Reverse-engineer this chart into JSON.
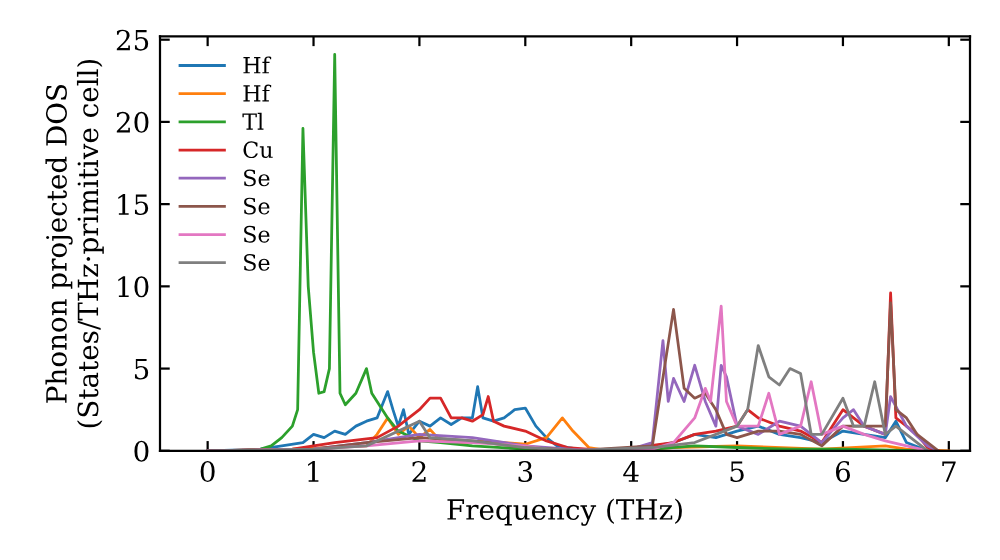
{
  "chart_data": {
    "type": "line",
    "xlabel": "Frequency (THz)",
    "ylabel": "Phonon projected DOS\n(States/THz·primitive cell)",
    "xlim": [
      -0.45,
      7.2
    ],
    "ylim": [
      0,
      25.2
    ],
    "xticks": [
      0,
      1,
      2,
      3,
      4,
      5,
      6,
      7
    ],
    "yticks": [
      0,
      5,
      10,
      15,
      20,
      25
    ],
    "grid": false,
    "legend": "top left",
    "line_style": "solid",
    "marker": "none",
    "series": [
      {
        "name": "Hf",
        "color": "#1f77b4",
        "x": [
          0,
          0.5,
          0.9,
          1.0,
          1.1,
          1.2,
          1.3,
          1.4,
          1.5,
          1.6,
          1.7,
          1.75,
          1.8,
          1.85,
          1.9,
          2.0,
          2.1,
          2.2,
          2.3,
          2.4,
          2.5,
          2.55,
          2.6,
          2.7,
          2.8,
          2.9,
          3.0,
          3.1,
          3.2,
          3.3,
          3.5,
          4.0,
          4.4,
          4.6,
          4.8,
          5.0,
          5.2,
          5.4,
          5.6,
          5.8,
          6.0,
          6.2,
          6.4,
          6.5,
          6.6,
          6.8
        ],
        "values": [
          0,
          0.1,
          0.5,
          1.0,
          0.8,
          1.2,
          1.0,
          1.5,
          1.8,
          2,
          3.6,
          2.5,
          1.5,
          2.5,
          1.0,
          1.8,
          1.5,
          2,
          1.6,
          2.0,
          2.0,
          3.9,
          2,
          1.8,
          2.0,
          2.5,
          2.6,
          1.5,
          0.8,
          0.3,
          0.1,
          0.05,
          0.5,
          1.0,
          0.8,
          1.2,
          1.5,
          1.0,
          0.8,
          0.5,
          1.2,
          1.0,
          0.8,
          1.8,
          0.5,
          0
        ]
      },
      {
        "name": "Hf",
        "color": "#ff7f0e",
        "x": [
          0,
          0.8,
          1.5,
          1.6,
          1.7,
          1.8,
          1.9,
          2.0,
          2.1,
          2.2,
          2.4,
          2.6,
          2.8,
          3.0,
          3.2,
          3.35,
          3.45,
          3.6,
          3.8,
          4.4,
          5.0,
          5.8,
          6.4,
          6.6,
          7.0
        ],
        "values": [
          0,
          0.1,
          0.3,
          1,
          2,
          1.0,
          1.5,
          0.8,
          1.3,
          0.6,
          0.5,
          0.6,
          0.5,
          0.4,
          0.8,
          2.0,
          1.2,
          0.2,
          0,
          0.2,
          0.3,
          0.1,
          0.3,
          0.1,
          0
        ]
      },
      {
        "name": "Tl",
        "color": "#2ca02c",
        "x": [
          0,
          0.3,
          0.5,
          0.6,
          0.7,
          0.8,
          0.85,
          0.9,
          0.95,
          1.0,
          1.05,
          1.1,
          1.15,
          1.2,
          1.25,
          1.3,
          1.4,
          1.5,
          1.55,
          1.6,
          1.7,
          1.8,
          2.0,
          2.2,
          2.5,
          3.0,
          3.5,
          4.2,
          4.6,
          5.0,
          5.5,
          6.0,
          6.8
        ],
        "values": [
          0,
          0,
          0.1,
          0.3,
          0.8,
          1.5,
          2.5,
          19.6,
          10,
          6,
          3.5,
          3.6,
          5,
          24.1,
          3.5,
          2.8,
          3.5,
          5,
          3.5,
          3,
          2,
          1.2,
          0.6,
          0.5,
          0.3,
          0.1,
          0.05,
          0.1,
          0.3,
          0.2,
          0.1,
          0.1,
          0
        ]
      },
      {
        "name": "Cu",
        "color": "#d62728",
        "x": [
          0,
          0.8,
          1.2,
          1.6,
          1.8,
          2.0,
          2.1,
          2.2,
          2.3,
          2.4,
          2.5,
          2.6,
          2.65,
          2.7,
          2.8,
          3.0,
          3.2,
          3.4,
          3.8,
          4.4,
          4.6,
          4.8,
          5.0,
          5.1,
          5.2,
          5.4,
          5.6,
          5.8,
          6.0,
          6.1,
          6.2,
          6.4,
          6.45,
          6.5,
          6.6,
          6.7,
          6.8,
          6.9
        ],
        "values": [
          0,
          0.1,
          0.5,
          0.8,
          1.5,
          2.5,
          3.2,
          3.2,
          2.0,
          2.0,
          1.8,
          2.2,
          3.3,
          1.8,
          1.5,
          1.2,
          0.6,
          0.2,
          0,
          0.5,
          1.0,
          1.2,
          1.5,
          2.5,
          2.0,
          1.5,
          1.2,
          0.5,
          2.5,
          2.0,
          1.5,
          1.0,
          9.6,
          2.0,
          1.5,
          1.0,
          0.2,
          0
        ]
      },
      {
        "name": "Se",
        "color": "#9467bd",
        "x": [
          0,
          1.0,
          1.5,
          2.0,
          2.5,
          3.0,
          3.5,
          4.0,
          4.2,
          4.3,
          4.35,
          4.4,
          4.5,
          4.6,
          4.7,
          4.8,
          4.85,
          4.9,
          5.0,
          5.2,
          5.4,
          5.6,
          5.8,
          6.0,
          6.1,
          6.2,
          6.4,
          6.45,
          6.6,
          6.8,
          6.9
        ],
        "values": [
          0,
          0.1,
          0.5,
          1.0,
          0.8,
          0.3,
          0.05,
          0.1,
          0.5,
          6.7,
          3,
          4.4,
          3.0,
          5.2,
          3,
          1.5,
          5.2,
          4.5,
          1.5,
          1.0,
          1.8,
          1.5,
          0.5,
          2.0,
          2.5,
          1.5,
          1.0,
          3.3,
          1.5,
          0.3,
          0
        ]
      },
      {
        "name": "Se",
        "color": "#8c564b",
        "x": [
          0,
          1.0,
          1.5,
          2.0,
          2.5,
          3.0,
          3.5,
          4.2,
          4.4,
          4.5,
          4.6,
          4.7,
          4.8,
          4.9,
          5.0,
          5.2,
          5.4,
          5.6,
          5.8,
          6.0,
          6.2,
          6.4,
          6.45,
          6.5,
          6.6,
          6.7,
          6.9
        ],
        "values": [
          0,
          0.1,
          0.5,
          0.8,
          0.6,
          0.2,
          0.02,
          0.3,
          8.6,
          3.8,
          3.2,
          3.5,
          2.5,
          1.0,
          0.8,
          1.2,
          1.2,
          1.0,
          0.3,
          1.5,
          1.5,
          1.5,
          9.0,
          2.5,
          2.0,
          1.0,
          0
        ]
      },
      {
        "name": "Se",
        "color": "#e377c2",
        "x": [
          0,
          1.0,
          1.5,
          2.0,
          2.5,
          3.0,
          3.2,
          3.4,
          4.2,
          4.4,
          4.6,
          4.7,
          4.75,
          4.85,
          4.9,
          5.0,
          5.2,
          5.3,
          5.4,
          5.6,
          5.7,
          5.8,
          6.0,
          6.2,
          6.4,
          6.6,
          6.8
        ],
        "values": [
          0,
          0.1,
          0.3,
          0.6,
          0.5,
          0.3,
          0.1,
          0.02,
          0.1,
          0.5,
          2.0,
          3.8,
          3.0,
          8.8,
          3,
          1.5,
          1.5,
          3.5,
          1.0,
          1.5,
          4.2,
          1.0,
          1.5,
          1.0,
          0.6,
          0.3,
          0
        ]
      },
      {
        "name": "Se",
        "color": "#7f7f7f",
        "x": [
          0,
          1.0,
          1.5,
          2.0,
          2.1,
          2.5,
          3.0,
          3.5,
          4.2,
          4.6,
          4.8,
          5.0,
          5.1,
          5.2,
          5.3,
          5.4,
          5.5,
          5.6,
          5.7,
          5.8,
          6.0,
          6.1,
          6.2,
          6.3,
          6.4,
          6.5,
          6.7,
          6.8
        ],
        "values": [
          0,
          0.1,
          0.3,
          1.8,
          0.8,
          0.6,
          0.2,
          0.02,
          0.2,
          0.5,
          1.0,
          1.5,
          2.5,
          6.4,
          4.5,
          4.0,
          5.0,
          4.7,
          1.0,
          1.0,
          3.2,
          1.5,
          1.5,
          4.2,
          1.0,
          1.5,
          0.5,
          0
        ]
      }
    ]
  }
}
